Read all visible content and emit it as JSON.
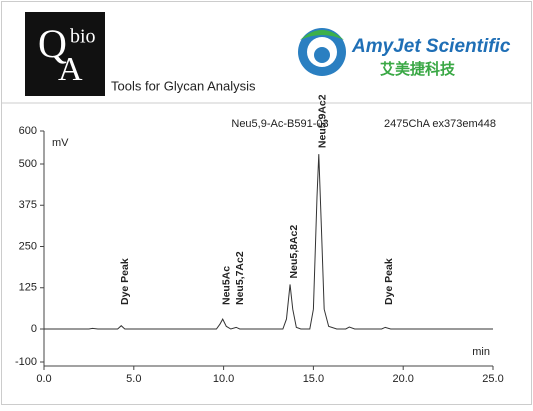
{
  "header": {
    "qa_bio": "bio",
    "qa_q": "Q",
    "qa_a": "A",
    "tagline": "Tools for Glycan Analysis",
    "brand": "AmyJet Scientific",
    "brand_cn": "艾美捷科技"
  },
  "chart_data": {
    "type": "line",
    "title": "Neu5,9-Ac-B591-03",
    "subtitle": "2475ChA ex373em448",
    "y_label": "mV",
    "x_label": "min",
    "x": [
      0,
      2.5,
      2.7,
      3.0,
      4.1,
      4.3,
      4.5,
      9.6,
      9.8,
      9.95,
      10.15,
      10.4,
      10.7,
      10.9,
      13.3,
      13.5,
      13.7,
      13.85,
      14.05,
      14.3,
      14.8,
      15.0,
      15.2,
      15.3,
      15.45,
      15.6,
      15.85,
      16.3,
      16.8,
      17.0,
      17.3,
      18.8,
      19.0,
      19.3,
      25
    ],
    "series": [
      {
        "name": "Neu5,9-Ac-B591-03",
        "color": "#333333",
        "values": [
          0,
          0,
          2,
          0,
          0,
          10,
          0,
          0,
          15,
          30,
          8,
          0,
          5,
          0,
          0,
          30,
          135,
          60,
          5,
          0,
          0,
          60,
          400,
          530,
          300,
          60,
          8,
          0,
          0,
          6,
          0,
          0,
          5,
          0,
          0
        ]
      }
    ],
    "annotations": [
      {
        "text": "Dye Peak",
        "x": 4.3
      },
      {
        "text": "Neu5Ac",
        "x": 9.95
      },
      {
        "text": "Neu5,7Ac2",
        "x": 10.7
      },
      {
        "text": "Neu5,8Ac2",
        "x": 13.7
      },
      {
        "text": "Neu5,9Ac2",
        "x": 15.3
      },
      {
        "text": "Dye Peak",
        "x": 19.0
      }
    ],
    "xlim": [
      0,
      25
    ],
    "xticks": [
      {
        "value": 0,
        "label": "0.0"
      },
      {
        "value": 5,
        "label": "5.0"
      },
      {
        "value": 10,
        "label": "10.0"
      },
      {
        "value": 15,
        "label": "15.0"
      },
      {
        "value": 20,
        "label": "20.0"
      },
      {
        "value": 25,
        "label": "25.0"
      }
    ],
    "ylim": [
      -100,
      600
    ],
    "yticks": [
      -100,
      0,
      125,
      250,
      375,
      500,
      600
    ],
    "grid": false
  }
}
